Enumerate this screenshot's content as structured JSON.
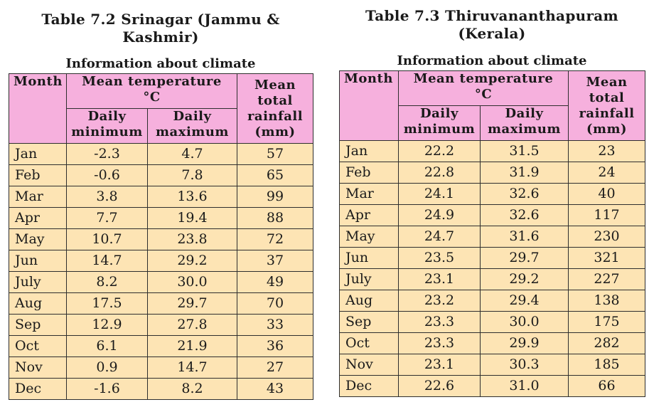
{
  "headers": {
    "month": "Month",
    "mean_temperature": "Mean temperature\n°C",
    "daily_minimum": "Daily\nminimum",
    "daily_maximum": "Daily\nmaximum",
    "rainfall": "Mean\ntotal\nrainfall\n(mm)"
  },
  "tables": [
    {
      "title": "Table 7.2  Srinagar (Jammu &\nKashmir)",
      "subtitle": "Information about climate",
      "rows": [
        {
          "month": "Jan",
          "min": "-2.3",
          "max": "4.7",
          "rain": "57"
        },
        {
          "month": "Feb",
          "min": "-0.6",
          "max": "7.8",
          "rain": "65"
        },
        {
          "month": "Mar",
          "min": "3.8",
          "max": "13.6",
          "rain": "99"
        },
        {
          "month": "Apr",
          "min": "7.7",
          "max": "19.4",
          "rain": "88"
        },
        {
          "month": "May",
          "min": "10.7",
          "max": "23.8",
          "rain": "72"
        },
        {
          "month": "Jun",
          "min": "14.7",
          "max": "29.2",
          "rain": "37"
        },
        {
          "month": "July",
          "min": "8.2",
          "max": "30.0",
          "rain": "49"
        },
        {
          "month": "Aug",
          "min": "17.5",
          "max": "29.7",
          "rain": "70"
        },
        {
          "month": "Sep",
          "min": "12.9",
          "max": "27.8",
          "rain": "33"
        },
        {
          "month": "Oct",
          "min": "6.1",
          "max": "21.9",
          "rain": "36"
        },
        {
          "month": "Nov",
          "min": "0.9",
          "max": "14.7",
          "rain": "27"
        },
        {
          "month": "Dec",
          "min": "-1.6",
          "max": "8.2",
          "rain": "43"
        }
      ]
    },
    {
      "title": "Table 7.3  Thiruvananthapuram\n(Kerala)",
      "subtitle": "Information about climate",
      "rows": [
        {
          "month": "Jan",
          "min": "22.2",
          "max": "31.5",
          "rain": "23"
        },
        {
          "month": "Feb",
          "min": "22.8",
          "max": "31.9",
          "rain": "24"
        },
        {
          "month": "Mar",
          "min": "24.1",
          "max": "32.6",
          "rain": "40"
        },
        {
          "month": "Apr",
          "min": "24.9",
          "max": "32.6",
          "rain": "117"
        },
        {
          "month": "May",
          "min": "24.7",
          "max": "31.6",
          "rain": "230"
        },
        {
          "month": "Jun",
          "min": "23.5",
          "max": "29.7",
          "rain": "321"
        },
        {
          "month": "July",
          "min": "23.1",
          "max": "29.2",
          "rain": "227"
        },
        {
          "month": "Aug",
          "min": "23.2",
          "max": "29.4",
          "rain": "138"
        },
        {
          "month": "Sep",
          "min": "23.3",
          "max": "30.0",
          "rain": "175"
        },
        {
          "month": "Oct",
          "min": "23.3",
          "max": "29.9",
          "rain": "282"
        },
        {
          "month": "Nov",
          "min": "23.1",
          "max": "30.3",
          "rain": "185"
        },
        {
          "month": "Dec",
          "min": "22.6",
          "max": "31.0",
          "rain": "66"
        }
      ]
    }
  ]
}
